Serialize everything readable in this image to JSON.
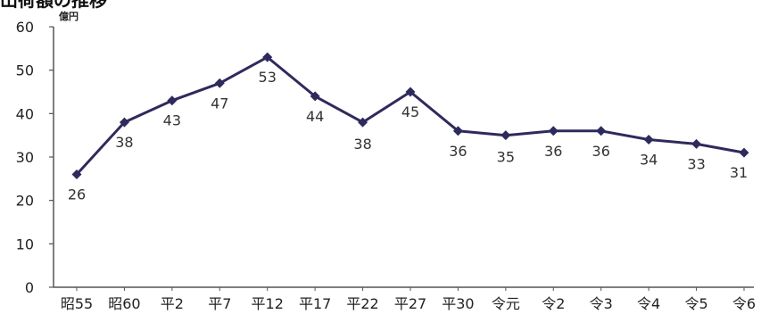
{
  "chart_data": {
    "type": "line",
    "title": "出荷額の推移",
    "ylabel": "億円",
    "xlabel": "",
    "ylim": [
      0,
      60
    ],
    "yticks": [
      0,
      10,
      20,
      30,
      40,
      50,
      60
    ],
    "grid": false,
    "legend": "none",
    "categories": [
      "昭55",
      "昭60",
      "平2",
      "平7",
      "平12",
      "平17",
      "平22",
      "平27",
      "平30",
      "令元",
      "令2",
      "令3",
      "令4",
      "令5",
      "令6"
    ],
    "series": [
      {
        "values": [
          26,
          38,
          43,
          47,
          53,
          44,
          38,
          45,
          36,
          35,
          36,
          36,
          34,
          33,
          31
        ]
      }
    ],
    "colors": {
      "line": "#2e2a5c",
      "marker": "#2e2a5c",
      "axis": "#555555"
    }
  }
}
